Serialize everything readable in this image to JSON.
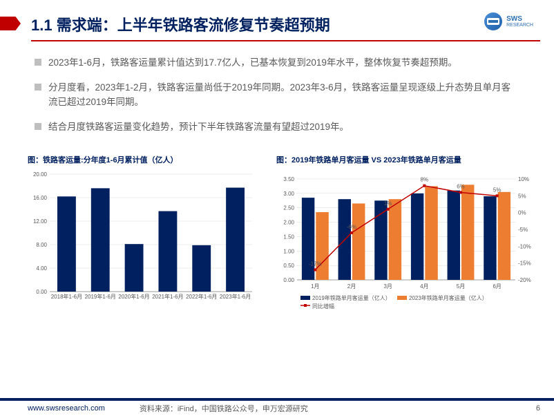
{
  "header": {
    "title": "1.1 需求端：上半年铁路客流修复节奏超预期",
    "logo": {
      "name": "SWS",
      "sub": "RESEARCH"
    }
  },
  "bullets": [
    "2023年1-6月，铁路客运量累计值达到17.7亿人，已基本恢复到2019年水平，整体恢复节奏超预期。",
    "分月度看，2023年1-2月，铁路客运量尚低于2019年同期。2023年3-6月，铁路客运量呈现逐级上升态势且单月客流已超过2019年同期。",
    "结合月度铁路客运量变化趋势，预计下半年铁路客流量有望超过2019年。"
  ],
  "chart1": {
    "title": "图：铁路客运量:分年度1-6月累计值（亿人）",
    "type": "bar",
    "categories": [
      "2018年1-6月",
      "2019年1-6月",
      "2020年1-6月",
      "2021年1-6月",
      "2022年1-6月",
      "2023年1-6月"
    ],
    "values": [
      16.2,
      17.6,
      8.1,
      13.7,
      7.9,
      17.7
    ],
    "bar_color": "#002060",
    "ylim": [
      0,
      20
    ],
    "ytick_step": 4,
    "yticks": [
      "0.00",
      "4.00",
      "8.00",
      "12.00",
      "16.00",
      "20.00"
    ],
    "grid_color": "#d9d9d9",
    "axis_color": "#808080",
    "background_color": "#ffffff",
    "label_fontsize": 8,
    "bar_width": 0.55
  },
  "chart2": {
    "title": "图：2019年铁路单月客运量 VS 2023年铁路单月客运量",
    "type": "bar+line",
    "categories": [
      "1月",
      "2月",
      "3月",
      "4月",
      "5月",
      "6月"
    ],
    "series": [
      {
        "name": "2019年铁路单月客运量（亿人）",
        "type": "bar",
        "color": "#002060",
        "values": [
          2.85,
          2.8,
          2.75,
          3.0,
          3.1,
          2.9
        ]
      },
      {
        "name": "2023年铁路单月客运量（亿人）",
        "type": "bar",
        "color": "#ed7d31",
        "values": [
          2.35,
          2.65,
          2.8,
          3.25,
          3.3,
          3.05
        ]
      },
      {
        "name": "同比增幅",
        "type": "line",
        "color": "#c00000",
        "values": [
          -17,
          -6,
          1,
          8,
          6,
          5
        ],
        "marker": "square",
        "marker_size": 4
      }
    ],
    "y1": {
      "lim": [
        0,
        3.5
      ],
      "step": 0.5,
      "ticks": [
        "0.00",
        "0.50",
        "1.00",
        "1.50",
        "2.00",
        "2.50",
        "3.00",
        "3.50"
      ]
    },
    "y2": {
      "lim": [
        -20,
        10
      ],
      "step": 5,
      "ticks": [
        "-20%",
        "-15%",
        "-10%",
        "-5%",
        "0%",
        "5%",
        "10%"
      ]
    },
    "value_labels": [
      "-17%",
      "-6%",
      "1%",
      "8%",
      "6%",
      "5%"
    ],
    "grid_color": "#d9d9d9",
    "axis_color": "#808080",
    "background_color": "#ffffff",
    "label_fontsize": 8,
    "bar_width": 0.35
  },
  "footer": {
    "url": "www.swsresearch.com",
    "source": "资料来源：iFind，中国铁路公众号，申万宏源研究",
    "page": "6"
  }
}
